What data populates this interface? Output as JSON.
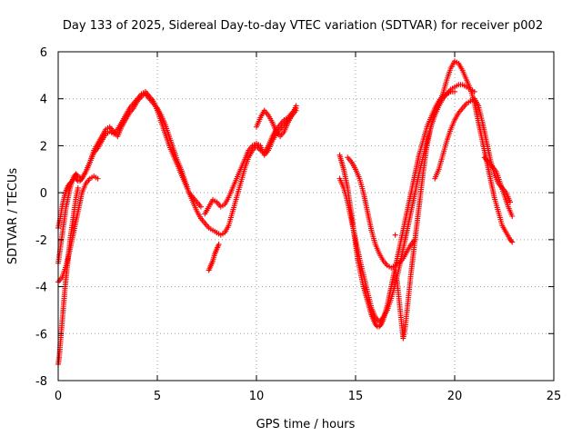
{
  "chart_data": {
    "type": "scatter",
    "title": "Day 133 of 2025, Sidereal Day-to-day VTEC variation (SDTVAR) for receiver p002",
    "xlabel": "GPS time / hours",
    "ylabel": "SDTVAR / TECUs",
    "xlim": [
      0,
      25
    ],
    "ylim": [
      -8,
      6
    ],
    "xticks": [
      0,
      5,
      10,
      15,
      20,
      25
    ],
    "yticks": [
      -8,
      -6,
      -4,
      -2,
      0,
      2,
      4,
      6
    ],
    "xtick_labels": [
      "0",
      "5",
      "10",
      "15",
      "20",
      "25"
    ],
    "ytick_labels": [
      "-8",
      "-6",
      "-4",
      "-2",
      "0",
      "2",
      "4",
      "6"
    ],
    "grid": true,
    "marker": "+",
    "color": "#ff0000",
    "series": [
      {
        "x": [
          0.0,
          0.1,
          0.2,
          0.3,
          0.4,
          0.5,
          0.6,
          0.7,
          0.8,
          0.9,
          1.0,
          1.2,
          1.4,
          1.6,
          1.8,
          2.0,
          2.2,
          2.4,
          2.6,
          2.8,
          3.0,
          3.2,
          3.4,
          3.6,
          3.8,
          4.0,
          4.2,
          4.4,
          4.6,
          4.8,
          5.0,
          5.2,
          5.4,
          5.6,
          5.8,
          6.0,
          6.2,
          6.4,
          6.6,
          6.8,
          7.0,
          7.2,
          7.4,
          7.6,
          7.8,
          8.0
        ],
        "y": [
          -3.0,
          -2.4,
          -1.8,
          -1.2,
          -0.6,
          -0.2,
          0.2,
          0.5,
          0.7,
          0.8,
          0.7,
          0.6,
          0.9,
          1.3,
          1.8,
          2.1,
          2.4,
          2.7,
          2.8,
          2.6,
          2.4,
          2.8,
          3.1,
          3.4,
          3.6,
          3.9,
          4.1,
          4.2,
          4.0,
          3.8,
          3.6,
          3.3,
          2.9,
          2.4,
          1.9,
          1.4,
          1.0,
          0.5,
          0.0,
          -0.4,
          -0.8,
          -1.1,
          -1.3,
          -1.5,
          -1.6,
          -1.7
        ]
      },
      {
        "x": [
          0.0,
          0.1,
          0.2,
          0.3,
          0.4,
          0.5,
          0.6,
          0.7,
          0.8,
          0.9,
          1.0,
          1.1,
          1.2,
          1.4,
          1.6,
          1.8,
          2.0,
          2.2,
          2.4,
          2.6,
          2.8,
          3.0,
          3.2,
          3.4,
          3.6,
          3.8,
          4.0,
          4.2,
          4.4,
          4.6,
          4.8,
          5.0,
          5.2,
          5.4,
          5.6,
          5.8,
          6.0,
          6.2,
          6.4,
          6.6,
          6.8,
          7.0,
          7.2
        ],
        "y": [
          -1.5,
          -1.1,
          -0.6,
          -0.2,
          0.1,
          0.3,
          0.4,
          0.5,
          0.6,
          0.6,
          0.5,
          0.5,
          0.6,
          0.9,
          1.3,
          1.7,
          1.9,
          2.2,
          2.5,
          2.6,
          2.5,
          2.7,
          3.0,
          3.3,
          3.6,
          3.8,
          4.0,
          4.2,
          4.3,
          4.1,
          3.9,
          3.5,
          3.0,
          2.5,
          2.0,
          1.6,
          1.2,
          0.8,
          0.4,
          0.0,
          -0.2,
          -0.4,
          -0.6
        ]
      },
      {
        "x": [
          0.0,
          0.05,
          0.1,
          0.15,
          0.2,
          0.25,
          0.3,
          0.35,
          0.4,
          0.45,
          0.5,
          0.55,
          0.6,
          0.7,
          0.8,
          0.9,
          1.0
        ],
        "y": [
          -7.3,
          -7.0,
          -6.5,
          -6.0,
          -5.5,
          -5.0,
          -4.5,
          -4.0,
          -3.6,
          -3.2,
          -2.8,
          -2.4,
          -2.0,
          -1.4,
          -0.8,
          -0.2,
          0.2
        ]
      },
      {
        "x": [
          0.0,
          0.2,
          0.4,
          0.6,
          0.8,
          1.0,
          1.2,
          1.4,
          1.6,
          1.8,
          2.0
        ],
        "y": [
          -3.8,
          -3.6,
          -3.1,
          -2.4,
          -1.6,
          -0.8,
          0.0,
          0.4,
          0.6,
          0.7,
          0.6
        ]
      },
      {
        "x": [
          7.6,
          7.7,
          7.8,
          7.9,
          8.0,
          8.1
        ],
        "y": [
          -3.3,
          -3.1,
          -2.9,
          -2.6,
          -2.4,
          -2.2
        ]
      },
      {
        "x": [
          7.4,
          7.6,
          7.8,
          8.0,
          8.2,
          8.4,
          8.6,
          8.8,
          9.0,
          9.2,
          9.4,
          9.6,
          9.8,
          10.0,
          10.2,
          10.4,
          10.6,
          10.8,
          11.0,
          11.2,
          11.4,
          11.6,
          11.8,
          12.0
        ],
        "y": [
          -0.9,
          -0.6,
          -0.3,
          -0.4,
          -0.6,
          -0.5,
          -0.2,
          0.2,
          0.6,
          1.0,
          1.4,
          1.8,
          2.0,
          2.1,
          2.0,
          1.6,
          1.8,
          2.2,
          2.5,
          2.7,
          2.9,
          3.1,
          3.3,
          3.5
        ]
      },
      {
        "x": [
          8.0,
          8.2,
          8.4,
          8.6,
          8.8,
          9.0,
          9.2,
          9.4,
          9.6,
          9.8,
          10.0,
          10.2,
          10.4,
          10.6,
          10.8,
          11.0,
          11.2,
          11.4,
          11.6,
          11.8,
          12.0
        ],
        "y": [
          -1.7,
          -1.8,
          -1.7,
          -1.4,
          -0.8,
          -0.2,
          0.4,
          1.0,
          1.5,
          1.8,
          2.0,
          1.8,
          1.7,
          2.0,
          2.4,
          2.7,
          2.9,
          3.1,
          3.2,
          3.4,
          3.6
        ]
      },
      {
        "x": [
          10.0,
          10.2,
          10.4,
          10.6,
          10.8,
          11.0,
          11.2,
          11.4,
          11.6,
          11.8,
          12.0
        ],
        "y": [
          2.8,
          3.2,
          3.5,
          3.3,
          3.0,
          2.6,
          2.4,
          2.6,
          3.0,
          3.3,
          3.7
        ]
      },
      {
        "x": [
          14.2,
          14.3,
          14.4,
          14.5,
          14.6,
          14.7,
          14.8,
          14.9,
          15.0,
          15.1,
          15.2,
          15.3,
          15.4,
          15.5,
          15.6,
          15.7,
          15.8,
          15.9,
          16.0,
          16.1,
          16.2,
          16.3,
          16.4,
          16.5,
          16.6,
          16.7,
          16.8,
          16.9,
          17.0,
          17.2,
          17.4,
          17.6,
          17.8,
          18.0,
          18.2,
          18.4,
          18.6,
          18.8,
          19.0,
          19.2,
          19.4,
          19.6,
          19.8,
          20.0
        ],
        "y": [
          1.6,
          1.3,
          1.0,
          0.6,
          0.2,
          -0.4,
          -0.9,
          -1.6,
          -2.2,
          -2.8,
          -3.2,
          -3.6,
          -4.0,
          -4.3,
          -4.6,
          -4.9,
          -5.2,
          -5.4,
          -5.6,
          -5.7,
          -5.7,
          -5.6,
          -5.4,
          -5.1,
          -4.8,
          -4.4,
          -4.0,
          -3.6,
          -3.2,
          -2.4,
          -1.6,
          -0.8,
          0.0,
          0.8,
          1.6,
          2.2,
          2.8,
          3.2,
          3.6,
          3.9,
          4.1,
          4.2,
          4.3,
          4.3
        ]
      },
      {
        "x": [
          14.2,
          14.4,
          14.6,
          14.8,
          15.0,
          15.2,
          15.4,
          15.6,
          15.8,
          16.0,
          16.2,
          16.4,
          16.6,
          16.8,
          17.0,
          17.2,
          17.4,
          17.6,
          17.8,
          18.0,
          18.2,
          18.4,
          18.6,
          18.8,
          19.0,
          19.2,
          19.4,
          19.6,
          19.8,
          20.0,
          20.2,
          20.4,
          20.6,
          20.8,
          21.0
        ],
        "y": [
          0.6,
          0.2,
          -0.4,
          -1.2,
          -2.0,
          -2.8,
          -3.5,
          -4.2,
          -4.9,
          -5.3,
          -5.5,
          -5.3,
          -5.0,
          -4.5,
          -3.9,
          -3.2,
          -2.4,
          -1.6,
          -0.8,
          0.0,
          0.8,
          1.5,
          2.2,
          2.8,
          3.3,
          3.7,
          4.0,
          4.2,
          4.4,
          4.5,
          4.6,
          4.6,
          4.5,
          4.4,
          4.3
        ]
      },
      {
        "x": [
          14.6,
          14.8,
          15.0,
          15.2,
          15.4,
          15.6,
          15.8,
          16.0,
          16.2,
          16.4,
          16.6,
          16.8,
          17.0,
          17.2,
          17.4,
          17.6,
          17.8,
          18.0
        ],
        "y": [
          1.5,
          1.3,
          1.0,
          0.6,
          0.0,
          -0.8,
          -1.6,
          -2.2,
          -2.6,
          -2.9,
          -3.1,
          -3.2,
          -3.1,
          -3.0,
          -2.8,
          -2.5,
          -2.2,
          -2.0
        ]
      },
      {
        "x": [
          17.0,
          17.1,
          17.2,
          17.3,
          17.4,
          17.5,
          17.6,
          17.7,
          17.8,
          18.0,
          18.2,
          18.4,
          18.6,
          18.8,
          19.0,
          19.2,
          19.4,
          19.6,
          19.8,
          20.0,
          20.2,
          20.4,
          20.6,
          20.8,
          21.0,
          21.2,
          21.4,
          21.6,
          21.8,
          22.0,
          22.2,
          22.4,
          22.6,
          22.8,
          22.9
        ],
        "y": [
          -3.2,
          -3.8,
          -4.6,
          -5.4,
          -6.2,
          -5.8,
          -5.0,
          -4.2,
          -3.4,
          -2.0,
          -0.6,
          0.8,
          2.0,
          2.8,
          3.4,
          3.8,
          4.2,
          4.8,
          5.3,
          5.6,
          5.5,
          5.2,
          4.8,
          4.4,
          3.8,
          3.0,
          2.2,
          1.4,
          0.6,
          -0.2,
          -0.8,
          -1.4,
          -1.7,
          -2.0,
          -2.1
        ]
      },
      {
        "x": [
          19.0,
          19.2,
          19.4,
          19.6,
          19.8,
          20.0,
          20.2,
          20.4,
          20.6,
          20.8,
          21.0,
          21.2,
          21.4,
          21.6,
          21.8,
          22.0,
          22.2,
          22.4,
          22.6,
          22.8
        ],
        "y": [
          0.6,
          1.0,
          1.6,
          2.2,
          2.7,
          3.1,
          3.4,
          3.6,
          3.8,
          3.9,
          4.0,
          3.7,
          3.0,
          2.2,
          1.4,
          0.8,
          0.4,
          0.2,
          0.0,
          -0.4
        ]
      },
      {
        "x": [
          21.5,
          21.7,
          21.9,
          22.1,
          22.3,
          22.5,
          22.7,
          22.9
        ],
        "y": [
          1.5,
          1.3,
          1.1,
          0.9,
          0.4,
          -0.1,
          -0.6,
          -1.0
        ]
      },
      {
        "x": [
          17.0
        ],
        "y": [
          -1.8
        ]
      }
    ]
  }
}
